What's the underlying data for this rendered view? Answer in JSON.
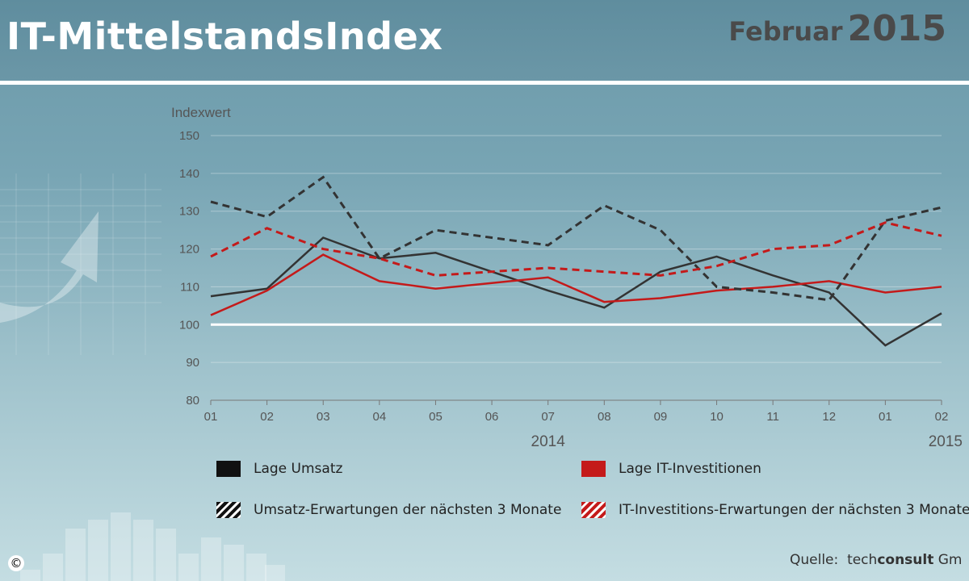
{
  "header": {
    "title": "IT-MittelstandsIndex",
    "month": "Februar",
    "year": "2015"
  },
  "source": {
    "label": "Quelle:",
    "brand_light": "tech",
    "brand_bold": "consult",
    "suffix": " Gm"
  },
  "copyright_symbol": "©",
  "colors": {
    "umsatz": "#333333",
    "investitionen": "#c41a1a",
    "baseline": "#ffffff"
  },
  "chart_data": {
    "type": "line",
    "ylabel": "Indexwert",
    "ylim": [
      80,
      150
    ],
    "yticks": [
      80,
      90,
      100,
      110,
      120,
      130,
      140,
      150
    ],
    "categories": [
      "01",
      "02",
      "03",
      "04",
      "05",
      "06",
      "07",
      "08",
      "09",
      "10",
      "11",
      "12",
      "01",
      "02"
    ],
    "year_labels": [
      {
        "label": "2014",
        "category_index": 6
      },
      {
        "label": "2015",
        "category_index": 13
      }
    ],
    "reference_line": 100,
    "grid": true,
    "legend_position": "bottom",
    "series": [
      {
        "name": "Lage Umsatz",
        "style": "solid",
        "color": "#333333",
        "values": [
          107.5,
          109.5,
          123,
          117.5,
          119,
          114,
          109,
          104.5,
          114,
          118,
          113,
          108.5,
          94.5,
          103
        ]
      },
      {
        "name": "Lage IT-Investitionen",
        "style": "solid",
        "color": "#c41a1a",
        "values": [
          102.5,
          109,
          118.5,
          111.5,
          109.5,
          111,
          112.5,
          106,
          107,
          109,
          110,
          111.5,
          108.5,
          110
        ]
      },
      {
        "name": "Umsatz-Erwartungen der nächsten 3 Monate",
        "style": "dashed",
        "color": "#333333",
        "values": [
          132.5,
          128.5,
          139,
          117.5,
          125,
          123,
          121,
          131.5,
          125,
          110,
          108.5,
          106.5,
          127.5,
          131
        ]
      },
      {
        "name": "IT-Investitions-Erwartungen der nächsten 3 Monate",
        "style": "dashed",
        "color": "#c41a1a",
        "values": [
          118,
          125.5,
          120,
          117.5,
          113,
          114,
          115,
          114,
          113,
          115.5,
          120,
          121,
          127,
          123.5
        ]
      }
    ]
  }
}
